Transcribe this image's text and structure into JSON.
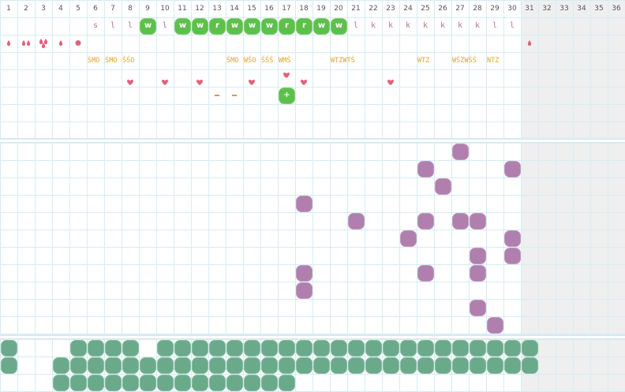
{
  "days": [
    "1",
    "2",
    "3",
    "4",
    "5",
    "6",
    "7",
    "8",
    "9",
    "10",
    "11",
    "12",
    "13",
    "14",
    "15",
    "16",
    "17",
    "18",
    "19",
    "20",
    "21",
    "22",
    "23",
    "24",
    "25",
    "26",
    "27",
    "28",
    "29",
    "30",
    "31",
    "32",
    "33",
    "34",
    "35",
    "36"
  ],
  "colors": {
    "green": "#5dc04b",
    "purple": "#b07fae",
    "teal": "#6aaa8a",
    "pink": "#e0607a",
    "orange": "#e3a22a",
    "letter": "#b0788e"
  },
  "top_section": {
    "letters_row": [
      {
        "col": 6,
        "text": "s",
        "type": "plain"
      },
      {
        "col": 7,
        "text": "l",
        "type": "plain"
      },
      {
        "col": 8,
        "text": "l",
        "type": "plain"
      },
      {
        "col": 9,
        "text": "w",
        "type": "blob"
      },
      {
        "col": 10,
        "text": "l",
        "type": "plain"
      },
      {
        "col": 11,
        "text": "w",
        "type": "blob"
      },
      {
        "col": 12,
        "text": "w",
        "type": "blob"
      },
      {
        "col": 13,
        "text": "r",
        "type": "blob"
      },
      {
        "col": 14,
        "text": "w",
        "type": "blob"
      },
      {
        "col": 15,
        "text": "w",
        "type": "blob"
      },
      {
        "col": 16,
        "text": "w",
        "type": "blob"
      },
      {
        "col": 17,
        "text": "r",
        "type": "blob"
      },
      {
        "col": 18,
        "text": "r",
        "type": "blob"
      },
      {
        "col": 19,
        "text": "w",
        "type": "blob"
      },
      {
        "col": 20,
        "text": "w",
        "type": "blob"
      },
      {
        "col": 21,
        "text": "l",
        "type": "plain"
      },
      {
        "col": 22,
        "text": "k",
        "type": "plain"
      },
      {
        "col": 23,
        "text": "k",
        "type": "plain"
      },
      {
        "col": 24,
        "text": "k",
        "type": "plain"
      },
      {
        "col": 25,
        "text": "k",
        "type": "plain"
      },
      {
        "col": 26,
        "text": "k",
        "type": "plain"
      },
      {
        "col": 27,
        "text": "k",
        "type": "plain"
      },
      {
        "col": 28,
        "text": "k",
        "type": "plain"
      },
      {
        "col": 29,
        "text": "l",
        "type": "plain"
      },
      {
        "col": 30,
        "text": "l",
        "type": "plain"
      }
    ],
    "drops_row": [
      {
        "col": 1,
        "icon": "drop-icon"
      },
      {
        "col": 2,
        "icon": "double-drop-icon"
      },
      {
        "col": 3,
        "icon": "triple-drop-icon"
      },
      {
        "col": 4,
        "icon": "drop-icon"
      },
      {
        "col": 5,
        "icon": "dot-icon"
      },
      {
        "col": 31,
        "icon": "drop-icon"
      }
    ],
    "codes_row": [
      {
        "col": 6,
        "text": "ŚMO"
      },
      {
        "col": 7,
        "text": "ŚMO"
      },
      {
        "col": 8,
        "text": "ŚŚO"
      },
      {
        "col": 14,
        "text": "ŚMO"
      },
      {
        "col": 15,
        "text": "WŚO"
      },
      {
        "col": 16,
        "text": "ŚŚŚ"
      },
      {
        "col": 17,
        "text": "WMŚ"
      },
      {
        "col": 20,
        "text": "WTZWTŚ"
      },
      {
        "col": 25,
        "text": "WTZ"
      },
      {
        "col": 27,
        "text": "WŚZWŚŚ"
      },
      {
        "col": 29,
        "text": "NTZ"
      }
    ],
    "hearts_row4": [
      17
    ],
    "hearts_row5": [
      8,
      10,
      12,
      15,
      18,
      23
    ],
    "dashes_row6": [
      13,
      14
    ],
    "plus_blob": {
      "col": 17,
      "text": "+"
    }
  },
  "middle_section": {
    "blobs": [
      [
        27,
        1
      ],
      [
        25,
        2
      ],
      [
        30,
        2
      ],
      [
        26,
        3
      ],
      [
        18,
        4
      ],
      [
        21,
        5
      ],
      [
        25,
        5
      ],
      [
        27,
        5
      ],
      [
        28,
        5
      ],
      [
        24,
        6
      ],
      [
        30,
        6
      ],
      [
        28,
        7
      ],
      [
        30,
        7
      ],
      [
        18,
        8
      ],
      [
        25,
        8
      ],
      [
        28,
        8
      ],
      [
        18,
        9
      ],
      [
        28,
        10
      ],
      [
        29,
        11
      ]
    ]
  },
  "bottom_section": {
    "rows": [
      [
        1,
        5,
        6,
        7,
        8,
        10,
        11,
        12,
        13,
        14,
        15,
        16,
        17,
        18,
        19,
        20,
        21,
        22,
        23,
        24,
        25,
        26,
        27,
        28,
        29,
        30,
        31
      ],
      [
        1,
        4,
        5,
        6,
        7,
        8,
        9,
        10,
        11,
        12,
        13,
        14,
        15,
        16,
        17,
        18,
        19,
        20,
        21,
        22,
        23,
        24,
        25,
        26,
        27,
        28,
        29,
        30,
        31
      ],
      [
        4,
        5,
        6,
        7,
        8,
        9,
        10,
        11,
        12,
        13,
        14,
        15,
        16,
        17
      ]
    ]
  }
}
